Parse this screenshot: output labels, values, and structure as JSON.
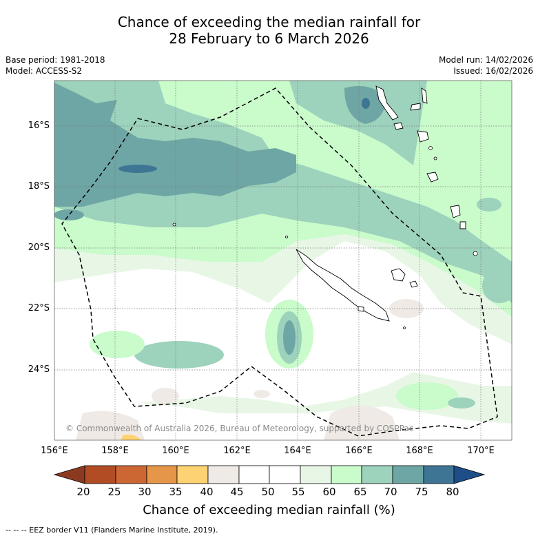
{
  "title_line1": "Chance of exceeding the median rainfall for",
  "title_line2": "28 February to 6 March 2026",
  "meta": {
    "base_period": "Base period: 1981-2018",
    "model": "Model: ACCESS-S2",
    "model_run": "Model run: 14/02/2026",
    "issued": "Issued: 16/02/2026"
  },
  "axes": {
    "lat_ticks": [
      "16°S",
      "18°S",
      "20°S",
      "22°S",
      "24°S"
    ],
    "lon_ticks": [
      "156°E",
      "158°E",
      "160°E",
      "162°E",
      "164°E",
      "166°E",
      "168°E",
      "170°E"
    ]
  },
  "copyright": "© Commonwealth of Australia 2026, Bureau of Meteorology, supported by COSPPac",
  "colorbar": {
    "labels": [
      "20",
      "25",
      "30",
      "35",
      "40",
      "45",
      "50",
      "55",
      "60",
      "65",
      "70",
      "75",
      "80"
    ],
    "colors": [
      "#8c3a1f",
      "#b24c24",
      "#cc6633",
      "#e59649",
      "#fdd272",
      "#efeae5",
      "#ffffff",
      "#ffffff",
      "#e8f6e6",
      "#c9fbcb",
      "#9dd2bc",
      "#6ea6a5",
      "#3f7594",
      "#1e4e87"
    ],
    "title": "Chance of exceeding median rainfall (%)"
  },
  "footnote": "--  --  -- EEZ border V11 (Flanders Marine Institute, 2019)."
}
